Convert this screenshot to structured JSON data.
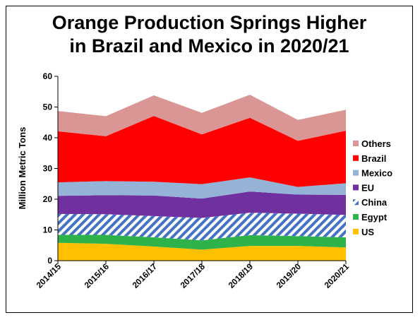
{
  "chart_data": {
    "type": "area",
    "stacked": true,
    "title_lines": [
      "Orange Production Springs Higher",
      "in Brazil and Mexico in 2020/21"
    ],
    "xlabel": "",
    "ylabel": "Million Metric Tons",
    "ylim": [
      0,
      60
    ],
    "yticks": [
      0,
      10,
      20,
      30,
      40,
      50,
      60
    ],
    "grid": false,
    "legend_position": "right",
    "categories": [
      "2014/15",
      "2015/16",
      "2016/17",
      "2017/18",
      "2018/19",
      "2019/20",
      "2020/21"
    ],
    "series": [
      {
        "name": "US",
        "color": "#FFC000",
        "pattern": false,
        "values": [
          5.8,
          5.5,
          4.6,
          3.6,
          4.8,
          4.8,
          4.3
        ]
      },
      {
        "name": "Egypt",
        "color": "#2DB34A",
        "pattern": false,
        "values": [
          2.6,
          2.9,
          3.0,
          3.0,
          3.5,
          3.2,
          3.3
        ]
      },
      {
        "name": "China",
        "color": "#4472C4",
        "pattern": true,
        "values": [
          6.8,
          6.7,
          6.9,
          7.3,
          7.3,
          7.3,
          7.3
        ]
      },
      {
        "name": "EU",
        "color": "#7030A0",
        "pattern": false,
        "values": [
          5.9,
          6.2,
          6.7,
          6.3,
          6.9,
          6.2,
          6.5
        ]
      },
      {
        "name": "Mexico",
        "color": "#95B3D7",
        "pattern": false,
        "values": [
          4.4,
          4.6,
          4.5,
          4.7,
          4.6,
          2.5,
          3.8
        ]
      },
      {
        "name": "Brazil",
        "color": "#FF0000",
        "pattern": false,
        "values": [
          16.6,
          14.6,
          21.4,
          16.2,
          19.4,
          15.0,
          17.1
        ]
      },
      {
        "name": "Others",
        "color": "#D99694",
        "pattern": false,
        "values": [
          6.6,
          6.5,
          6.7,
          7.0,
          7.5,
          6.8,
          6.8
        ]
      }
    ],
    "legend_order": [
      "Others",
      "Brazil",
      "Mexico",
      "EU",
      "China",
      "Egypt",
      "US"
    ]
  }
}
